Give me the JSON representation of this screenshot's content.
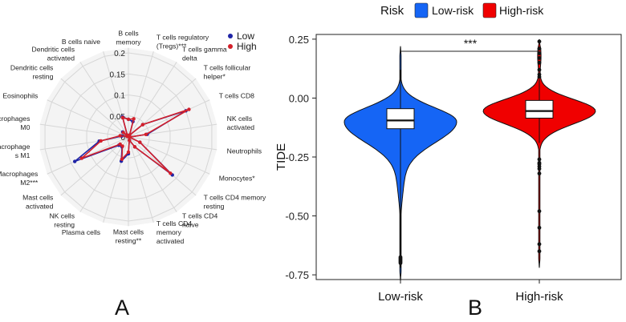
{
  "chart_data": [
    {
      "type": "radar",
      "panel_label": "A",
      "legend": [
        "Low",
        "High"
      ],
      "radial_ticks": [
        "0",
        "0.05",
        "0.1",
        "0.15",
        "0.2"
      ],
      "rmax": 0.2,
      "categories": [
        {
          "lines": [
            "B cells",
            "memory"
          ]
        },
        {
          "lines": [
            "T cells regulatory",
            "(Tregs)***"
          ]
        },
        {
          "lines": [
            "T cells gamma",
            "delta"
          ]
        },
        {
          "lines": [
            "T cells follicular",
            "helper*"
          ]
        },
        {
          "lines": [
            "T cells CD8"
          ]
        },
        {
          "lines": [
            "NK cells",
            "activated"
          ]
        },
        {
          "lines": [
            "Neutrophils"
          ]
        },
        {
          "lines": [
            "Monocytes*"
          ]
        },
        {
          "lines": [
            "T cells CD4 memory",
            "resting"
          ]
        },
        {
          "lines": [
            "T cells CD4",
            "naive"
          ]
        },
        {
          "lines": [
            "T cells CD4",
            "memory",
            "activated"
          ]
        },
        {
          "lines": [
            "Mast cells",
            "resting**"
          ]
        },
        {
          "lines": [
            "Plasma cells"
          ]
        },
        {
          "lines": [
            "NK cells",
            "resting"
          ]
        },
        {
          "lines": [
            "Mast cells",
            "activated"
          ]
        },
        {
          "lines": [
            "Macrophages",
            "M2***"
          ]
        },
        {
          "lines": [
            "Macrophage",
            "s M1"
          ]
        },
        {
          "lines": [
            "Macrophages",
            "M0"
          ]
        },
        {
          "lines": [
            "Eosinophils"
          ]
        },
        {
          "lines": [
            "Dendritic cells",
            "resting"
          ]
        },
        {
          "lines": [
            "Dendritic cells",
            "activated"
          ]
        },
        {
          "lines": [
            "B cells naive"
          ]
        }
      ],
      "series": [
        {
          "name": "Low",
          "color": "#1f24a6",
          "values": [
            0.042,
            0.038,
            0.005,
            0.045,
            0.15,
            0.045,
            0.002,
            0.03,
            0.138,
            0.028,
            0.008,
            0.04,
            0.06,
            0.028,
            0.03,
            0.14,
            0.07,
            0.016,
            0.003,
            0.018,
            0.005,
            0.05
          ]
        },
        {
          "name": "High",
          "color": "#d4202a",
          "values": [
            0.042,
            0.045,
            0.005,
            0.045,
            0.158,
            0.042,
            0.002,
            0.03,
            0.132,
            0.028,
            0.008,
            0.036,
            0.055,
            0.026,
            0.026,
            0.122,
            0.066,
            0.02,
            0.003,
            0.016,
            0.005,
            0.048
          ]
        }
      ]
    },
    {
      "type": "violin",
      "panel_label": "B",
      "legend_title": "Risk",
      "ylabel": "TIDE",
      "ylim": [
        -0.77,
        0.27
      ],
      "yticks": [
        "0.25",
        "0.00",
        "-0.25",
        "-0.50",
        "-0.75"
      ],
      "significance": "***",
      "groups": [
        {
          "name": "Low-risk",
          "color": "#1565f5",
          "min": -0.72,
          "q1": -0.13,
          "median": -0.095,
          "q3": -0.045,
          "max": 0.12,
          "outliers": [
            -0.675,
            -0.68,
            -0.685,
            -0.69,
            -0.695,
            -0.7
          ]
        },
        {
          "name": "High-risk",
          "color": "#f00000",
          "min": -0.19,
          "q1": -0.085,
          "median": -0.055,
          "q3": -0.01,
          "max": 0.08,
          "outliers": [
            0.24,
            0.21,
            0.19,
            0.17,
            0.15,
            0.12,
            0.1,
            0.09,
            -0.26,
            -0.275,
            -0.28,
            -0.29,
            -0.3,
            -0.32,
            -0.48,
            -0.55,
            -0.62,
            -0.65
          ]
        }
      ]
    }
  ]
}
